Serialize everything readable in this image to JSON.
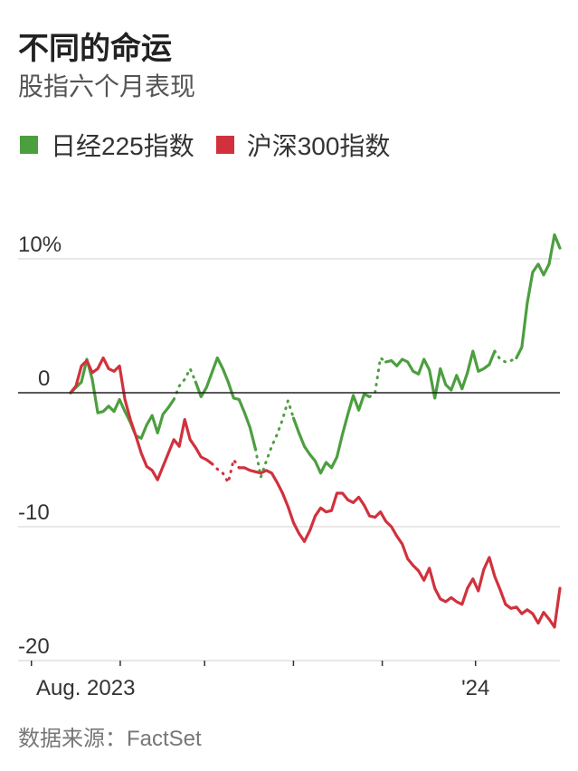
{
  "header": {
    "title": "不同的命运",
    "subtitle": "股指六个月表现"
  },
  "legend": {
    "items": [
      {
        "label": "日经225指数",
        "color": "#4c9f3f"
      },
      {
        "label": "沪深300指数",
        "color": "#d1313d"
      }
    ]
  },
  "footer": {
    "source": "数据来源：FactSet"
  },
  "chart_data": {
    "type": "line",
    "ylim": [
      -20,
      10
    ],
    "xlim": [
      0,
      122
    ],
    "y_ticks": [
      {
        "value": 10,
        "label": "10%"
      },
      {
        "value": 0,
        "label": "0"
      },
      {
        "value": -10,
        "label": "-10"
      },
      {
        "value": -20,
        "label": "-20"
      }
    ],
    "x_ticks": [
      {
        "value": 3,
        "label": "Aug. 2023"
      },
      {
        "value": 23,
        "label": ""
      },
      {
        "value": 42,
        "label": ""
      },
      {
        "value": 62,
        "label": ""
      },
      {
        "value": 82,
        "label": ""
      },
      {
        "value": 103,
        "label": "'24"
      }
    ],
    "grid": true,
    "series": [
      {
        "name": "日经225指数",
        "color": "#4c9f3f",
        "points": [
          [
            0,
            0.0
          ],
          [
            1,
            0.4
          ],
          [
            2,
            0.8
          ],
          [
            3,
            2.5
          ],
          [
            4,
            1.0
          ],
          [
            5,
            -1.5
          ],
          [
            6,
            -1.4
          ],
          [
            7,
            -1.0
          ],
          [
            8,
            -1.4
          ],
          [
            9,
            -0.5
          ],
          [
            10,
            -1.4
          ],
          [
            11,
            -2.2
          ],
          [
            12,
            -3.2
          ],
          [
            13,
            -3.4
          ],
          [
            14,
            -2.4
          ],
          [
            15,
            -1.7
          ],
          [
            16,
            -3.0
          ],
          [
            17,
            -1.6
          ],
          [
            18,
            -1.1
          ],
          [
            19,
            -0.5
          ],
          [
            20,
            0.5
          ],
          [
            21,
            1.0
          ],
          [
            22,
            1.8
          ],
          [
            23,
            0.8
          ],
          [
            24,
            -0.3
          ],
          [
            25,
            0.4
          ],
          [
            26,
            1.5
          ],
          [
            27,
            2.6
          ],
          [
            28,
            1.8
          ],
          [
            29,
            0.8
          ],
          [
            30,
            -0.4
          ],
          [
            31,
            -0.5
          ],
          [
            32,
            -1.5
          ],
          [
            33,
            -2.6
          ],
          [
            34,
            -4.2
          ],
          [
            35,
            -6.3
          ],
          [
            36,
            -5.1
          ],
          [
            37,
            -4.0
          ],
          [
            38,
            -3.1
          ],
          [
            39,
            -2.0
          ],
          [
            40,
            -0.6
          ],
          [
            41,
            -1.9
          ],
          [
            42,
            -3.0
          ],
          [
            43,
            -4.0
          ],
          [
            44,
            -4.6
          ],
          [
            45,
            -5.1
          ],
          [
            46,
            -6.0
          ],
          [
            47,
            -5.2
          ],
          [
            48,
            -5.6
          ],
          [
            49,
            -4.8
          ],
          [
            50,
            -3.1
          ],
          [
            51,
            -1.6
          ],
          [
            52,
            -0.2
          ],
          [
            53,
            -1.3
          ],
          [
            54,
            -0.1
          ],
          [
            55,
            -0.3
          ],
          [
            56,
            0.0
          ],
          [
            57,
            2.6
          ],
          [
            58,
            2.3
          ],
          [
            59,
            2.4
          ],
          [
            60,
            2.0
          ],
          [
            61,
            2.5
          ],
          [
            62,
            2.3
          ],
          [
            63,
            1.6
          ],
          [
            64,
            1.4
          ],
          [
            65,
            2.5
          ],
          [
            66,
            1.7
          ],
          [
            67,
            -0.4
          ],
          [
            68,
            1.8
          ],
          [
            69,
            0.6
          ],
          [
            70,
            0.2
          ],
          [
            71,
            1.3
          ],
          [
            72,
            0.3
          ],
          [
            73,
            1.5
          ],
          [
            74,
            3.1
          ],
          [
            75,
            1.6
          ],
          [
            76,
            1.8
          ],
          [
            77,
            2.1
          ],
          [
            78,
            3.1
          ],
          [
            79,
            2.5
          ],
          [
            80,
            2.3
          ],
          [
            81,
            2.4
          ],
          [
            82,
            2.6
          ],
          [
            83,
            3.4
          ],
          [
            84,
            6.7
          ],
          [
            85,
            9.0
          ],
          [
            86,
            9.6
          ],
          [
            87,
            8.8
          ],
          [
            88,
            9.6
          ],
          [
            89,
            11.8
          ],
          [
            90,
            10.8
          ]
        ],
        "dotted_ranges": [
          [
            19,
            23
          ],
          [
            34,
            41
          ],
          [
            55,
            58
          ],
          [
            78,
            82
          ]
        ]
      },
      {
        "name": "沪深300指数",
        "color": "#d1313d",
        "points": [
          [
            0,
            0.0
          ],
          [
            1,
            0.5
          ],
          [
            2,
            2.0
          ],
          [
            3,
            2.4
          ],
          [
            4,
            1.5
          ],
          [
            5,
            1.8
          ],
          [
            6,
            2.6
          ],
          [
            7,
            1.8
          ],
          [
            8,
            1.6
          ],
          [
            9,
            2.0
          ],
          [
            10,
            -0.5
          ],
          [
            11,
            -2.0
          ],
          [
            12,
            -3.2
          ],
          [
            13,
            -4.5
          ],
          [
            14,
            -5.5
          ],
          [
            15,
            -5.8
          ],
          [
            16,
            -6.5
          ],
          [
            17,
            -5.5
          ],
          [
            18,
            -4.5
          ],
          [
            19,
            -3.5
          ],
          [
            20,
            -4.0
          ],
          [
            21,
            -2.0
          ],
          [
            22,
            -3.5
          ],
          [
            23,
            -4.1
          ],
          [
            24,
            -4.8
          ],
          [
            25,
            -5.0
          ],
          [
            26,
            -5.3
          ],
          [
            27,
            -5.7
          ],
          [
            28,
            -6.0
          ],
          [
            29,
            -6.7
          ],
          [
            30,
            -5.0
          ],
          [
            31,
            -5.6
          ],
          [
            32,
            -5.6
          ],
          [
            33,
            -5.8
          ],
          [
            34,
            -5.9
          ],
          [
            35,
            -6.0
          ],
          [
            36,
            -5.8
          ],
          [
            37,
            -6.0
          ],
          [
            38,
            -6.7
          ],
          [
            39,
            -7.5
          ],
          [
            40,
            -8.5
          ],
          [
            41,
            -9.7
          ],
          [
            42,
            -10.5
          ],
          [
            43,
            -11.1
          ],
          [
            44,
            -10.3
          ],
          [
            45,
            -9.2
          ],
          [
            46,
            -8.6
          ],
          [
            47,
            -8.9
          ],
          [
            48,
            -8.8
          ],
          [
            49,
            -7.5
          ],
          [
            50,
            -7.5
          ],
          [
            51,
            -8.0
          ],
          [
            52,
            -8.2
          ],
          [
            53,
            -7.8
          ],
          [
            54,
            -8.4
          ],
          [
            55,
            -9.2
          ],
          [
            56,
            -9.3
          ],
          [
            57,
            -8.9
          ],
          [
            58,
            -9.6
          ],
          [
            59,
            -10.0
          ],
          [
            60,
            -10.7
          ],
          [
            61,
            -11.3
          ],
          [
            62,
            -12.4
          ],
          [
            63,
            -12.9
          ],
          [
            64,
            -13.3
          ],
          [
            65,
            -14.0
          ],
          [
            66,
            -13.1
          ],
          [
            67,
            -14.6
          ],
          [
            68,
            -15.4
          ],
          [
            69,
            -15.6
          ],
          [
            70,
            -15.3
          ],
          [
            71,
            -15.6
          ],
          [
            72,
            -15.8
          ],
          [
            73,
            -14.6
          ],
          [
            74,
            -13.9
          ],
          [
            75,
            -14.8
          ],
          [
            76,
            -13.2
          ],
          [
            77,
            -12.3
          ],
          [
            78,
            -13.7
          ],
          [
            79,
            -14.7
          ],
          [
            80,
            -15.8
          ],
          [
            81,
            -16.1
          ],
          [
            82,
            -16.0
          ],
          [
            83,
            -16.5
          ],
          [
            84,
            -16.2
          ],
          [
            85,
            -16.5
          ],
          [
            86,
            -17.2
          ],
          [
            87,
            -16.4
          ],
          [
            88,
            -16.9
          ],
          [
            89,
            -17.5
          ],
          [
            90,
            -14.6
          ]
        ],
        "dotted_ranges": [
          [
            26,
            31
          ]
        ]
      }
    ]
  }
}
